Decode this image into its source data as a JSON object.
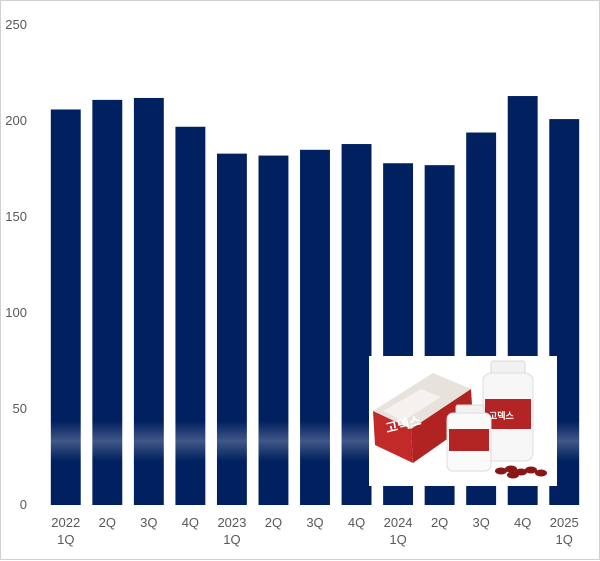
{
  "chart_data": {
    "type": "bar",
    "categories": [
      [
        "2022",
        "1Q"
      ],
      [
        "2Q"
      ],
      [
        "3Q"
      ],
      [
        "4Q"
      ],
      [
        "2023",
        "1Q"
      ],
      [
        "2Q"
      ],
      [
        "3Q"
      ],
      [
        "4Q"
      ],
      [
        "2024",
        "1Q"
      ],
      [
        "2Q"
      ],
      [
        "3Q"
      ],
      [
        "4Q"
      ],
      [
        "2025",
        "1Q"
      ]
    ],
    "values": [
      206,
      211,
      212,
      197,
      183,
      182,
      185,
      188,
      178,
      177,
      194,
      213,
      201
    ],
    "ylim": [
      0,
      250
    ],
    "yticks": [
      "0",
      "50",
      "100",
      "150",
      "200",
      "250"
    ],
    "grid": false,
    "title": "",
    "xlabel": "",
    "ylabel": "",
    "bar_color": "#012060"
  },
  "inset_image": {
    "box_text": "고덱스",
    "bottle_text": "고덱스",
    "colors": {
      "box": "#c22a2a",
      "bottle_label": "#b32424",
      "capsule": "#8a1616"
    }
  }
}
